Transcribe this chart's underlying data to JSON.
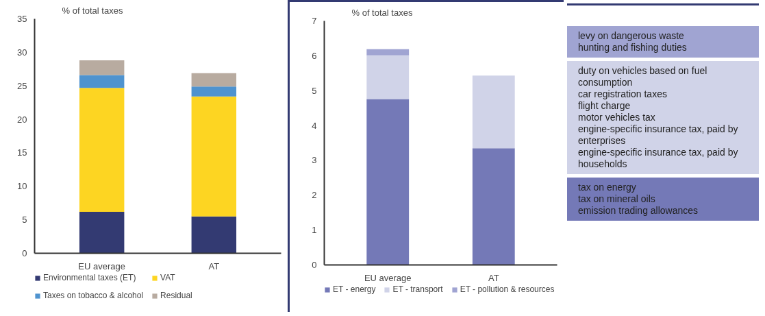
{
  "chart_data": [
    {
      "type": "bar",
      "stacked": true,
      "ylabel": "% of total taxes",
      "categories": [
        "EU average",
        "AT"
      ],
      "ylim": [
        0,
        35
      ],
      "yticks": [
        0,
        5,
        10,
        15,
        20,
        25,
        30,
        35
      ],
      "grid": false,
      "legend": "bottom",
      "series": [
        {
          "name": "Environmental taxes (ET)",
          "color": "#333a72",
          "values": [
            6.2,
            5.5
          ]
        },
        {
          "name": "VAT",
          "color": "#fdd522",
          "values": [
            18.5,
            17.9
          ]
        },
        {
          "name": "Taxes on tobacco & alcohol",
          "color": "#4f93cf",
          "values": [
            1.9,
            1.5
          ]
        },
        {
          "name": "Residual",
          "color": "#b8aba0",
          "values": [
            2.2,
            2.0
          ]
        }
      ]
    },
    {
      "type": "bar",
      "stacked": true,
      "ylabel": "% of total taxes",
      "categories": [
        "EU average",
        "AT"
      ],
      "ylim": [
        0,
        7
      ],
      "yticks": [
        0,
        1,
        2,
        3,
        4,
        5,
        6,
        7
      ],
      "grid": false,
      "legend": "bottom",
      "series": [
        {
          "name": "ET - energy",
          "color": "#7479b7",
          "values": [
            4.76,
            3.35
          ]
        },
        {
          "name": "ET - transport",
          "color": "#d0d3e8",
          "values": [
            1.25,
            2.08
          ]
        },
        {
          "name": "ET - pollution & resources",
          "color": "#a0a4d2",
          "values": [
            0.18,
            0.0
          ]
        }
      ],
      "annotations": [
        "levy on dangerous waste\nhunting and fishing duties",
        "duty on vehicles based on fuel consumption\ncar registration taxes\nflight charge\nmotor vehicles tax\nengine-specific insurance tax, paid by enterprises\nengine-specific insurance tax, paid by households",
        "tax on energy\ntax on mineral oils\nemission trading allowances"
      ]
    }
  ]
}
